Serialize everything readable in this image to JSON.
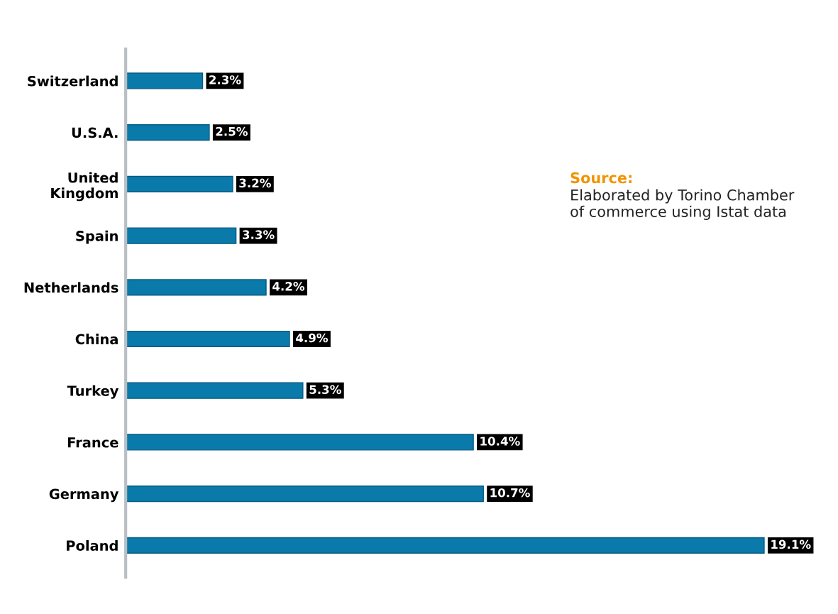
{
  "chart_data": {
    "type": "bar",
    "orientation": "horizontal",
    "categories": [
      "Switzerland",
      "U.S.A.",
      "United\nKingdom",
      "Spain",
      "Netherlands",
      "China",
      "Turkey",
      "France",
      "Germany",
      "Poland"
    ],
    "values": [
      2.3,
      2.5,
      3.2,
      3.3,
      4.2,
      4.9,
      5.3,
      10.4,
      10.7,
      19.1
    ],
    "value_labels": [
      "2.3%",
      "2.5%",
      "3.2%",
      "3.3%",
      "4.2%",
      "4.9%",
      "5.3%",
      "10.4%",
      "10.7%",
      "19.1%"
    ],
    "color": "#0a7aab",
    "tick_labels": "y",
    "annotations": [
      "Source:",
      "Elaborated by Torino Chamber\nof commerce using Istat data"
    ]
  }
}
